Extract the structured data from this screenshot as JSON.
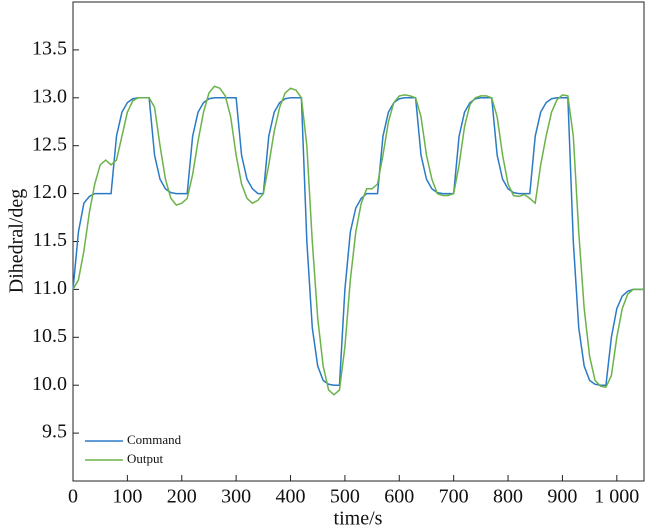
{
  "chart_data": {
    "type": "line",
    "x_label": "time/s",
    "y_label": "Dihedral/deg",
    "x": [
      0,
      10,
      20,
      30,
      40,
      50,
      60,
      70,
      80,
      90,
      100,
      110,
      120,
      130,
      140,
      150,
      160,
      170,
      180,
      190,
      200,
      210,
      220,
      230,
      240,
      250,
      260,
      270,
      280,
      290,
      300,
      310,
      320,
      330,
      340,
      350,
      360,
      370,
      380,
      390,
      400,
      410,
      420,
      430,
      440,
      450,
      460,
      470,
      480,
      490,
      500,
      510,
      520,
      530,
      540,
      550,
      560,
      570,
      580,
      590,
      600,
      610,
      620,
      630,
      640,
      650,
      660,
      670,
      680,
      690,
      700,
      710,
      720,
      730,
      740,
      750,
      760,
      770,
      780,
      790,
      800,
      810,
      820,
      830,
      840,
      850,
      860,
      870,
      880,
      890,
      900,
      910,
      920,
      930,
      940,
      950,
      960,
      970,
      980,
      990,
      1000,
      1010,
      1020,
      1030,
      1040,
      1050
    ],
    "series": [
      {
        "name": "Command",
        "color": "#2a7ac6",
        "values": [
          11.0,
          11.6,
          11.9,
          11.97,
          12.0,
          12.0,
          12.0,
          12.0,
          12.6,
          12.85,
          12.95,
          12.99,
          13.0,
          13.0,
          13.0,
          12.4,
          12.15,
          12.05,
          12.01,
          12.0,
          12.0,
          12.0,
          12.6,
          12.85,
          12.95,
          12.99,
          13.0,
          13.0,
          13.0,
          13.0,
          13.0,
          12.4,
          12.15,
          12.05,
          12.0,
          12.0,
          12.6,
          12.85,
          12.95,
          12.99,
          13.0,
          13.0,
          13.0,
          11.5,
          10.6,
          10.2,
          10.05,
          10.01,
          10.0,
          10.0,
          11.0,
          11.6,
          11.85,
          11.95,
          12.0,
          12.0,
          12.0,
          12.6,
          12.85,
          12.95,
          12.99,
          13.0,
          13.0,
          13.0,
          12.4,
          12.15,
          12.05,
          12.01,
          12.0,
          12.0,
          12.0,
          12.6,
          12.85,
          12.95,
          12.99,
          13.0,
          13.0,
          13.0,
          12.4,
          12.15,
          12.05,
          12.01,
          12.0,
          12.0,
          12.0,
          12.6,
          12.85,
          12.95,
          12.99,
          13.0,
          13.0,
          13.0,
          11.5,
          10.6,
          10.2,
          10.05,
          10.01,
          10.0,
          10.0,
          10.5,
          10.8,
          10.93,
          10.98,
          11.0,
          11.0,
          11.0
        ]
      },
      {
        "name": "Output",
        "color": "#6cb24a",
        "values": [
          11.0,
          11.1,
          11.4,
          11.8,
          12.1,
          12.3,
          12.35,
          12.3,
          12.35,
          12.6,
          12.85,
          12.97,
          13.0,
          13.0,
          13.0,
          12.9,
          12.5,
          12.15,
          11.95,
          11.88,
          11.9,
          11.95,
          12.2,
          12.55,
          12.85,
          13.05,
          13.12,
          13.1,
          13.02,
          12.8,
          12.4,
          12.1,
          11.95,
          11.9,
          11.93,
          12.0,
          12.3,
          12.65,
          12.9,
          13.05,
          13.1,
          13.08,
          13.0,
          12.5,
          11.5,
          10.7,
          10.2,
          9.95,
          9.9,
          9.95,
          10.4,
          11.1,
          11.6,
          11.9,
          12.05,
          12.05,
          12.1,
          12.4,
          12.75,
          12.95,
          13.02,
          13.03,
          13.02,
          13.0,
          12.8,
          12.4,
          12.15,
          12.0,
          11.98,
          11.98,
          12.0,
          12.3,
          12.7,
          12.93,
          13.0,
          13.02,
          13.02,
          13.0,
          12.8,
          12.4,
          12.1,
          11.98,
          11.97,
          11.99,
          11.95,
          11.9,
          12.3,
          12.6,
          12.85,
          12.98,
          13.03,
          13.02,
          12.6,
          11.6,
          10.8,
          10.3,
          10.05,
          9.99,
          9.98,
          10.1,
          10.5,
          10.8,
          10.95,
          11.0,
          11.0,
          11.0
        ]
      }
    ],
    "xlim": [
      0,
      1050
    ],
    "xticks": [
      0,
      100,
      200,
      300,
      400,
      500,
      600,
      700,
      800,
      900,
      {
        "value": 1000,
        "label": "1 000"
      }
    ],
    "ylim": [
      9.0,
      14.0
    ],
    "yticks": [
      9.5,
      {
        "value": 10.0,
        "label": "10.0"
      },
      10.5,
      {
        "value": 11.0,
        "label": "11.0"
      },
      11.5,
      {
        "value": 12.0,
        "label": "12.0"
      },
      12.5,
      {
        "value": 13.0,
        "label": "13.0"
      },
      13.5
    ],
    "legend": "lower left"
  }
}
